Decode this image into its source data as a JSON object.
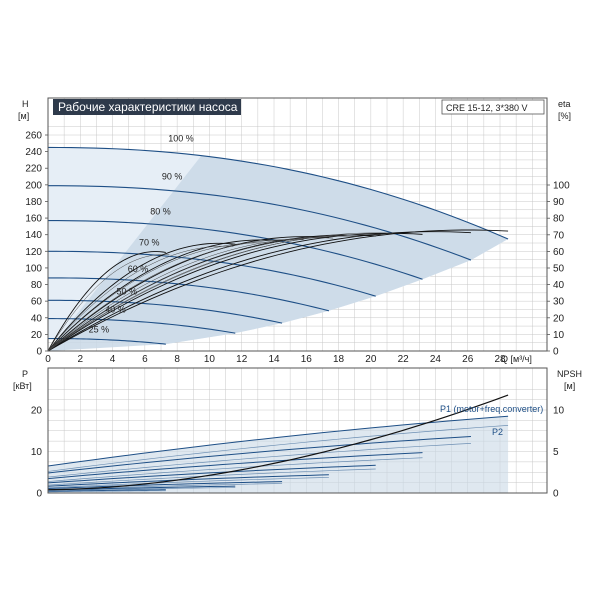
{
  "chart_data": [
    {
      "type": "line",
      "title": "Рабочие характеристики насоса",
      "model": "CRE 15-12, 3*380 V",
      "x_axis": {
        "label": "Q [м³/ч]",
        "range": [
          0,
          30
        ],
        "ticks": [
          "0",
          "2",
          "4",
          "6",
          "8",
          "10",
          "12",
          "14",
          "16",
          "18",
          "20",
          "22",
          "24",
          "26",
          "28"
        ]
      },
      "y_axis_left": {
        "label": "H",
        "unit": "[м]",
        "range": [
          0,
          270
        ],
        "ticks": [
          "0",
          "20",
          "40",
          "60",
          "80",
          "100",
          "120",
          "140",
          "160",
          "180",
          "200",
          "220",
          "240",
          "260"
        ]
      },
      "y_axis_right": {
        "label": "eta",
        "unit": "[%]",
        "range": [
          0,
          100
        ],
        "ticks": [
          "0",
          "10",
          "20",
          "30",
          "40",
          "50",
          "60",
          "70",
          "80",
          "90",
          "100"
        ]
      },
      "grid": true,
      "series": [
        {
          "name": "100 %",
          "speed": 1.0,
          "h0": 245,
          "qmax": 28.5,
          "eta_peak": 73
        },
        {
          "name": "90 %",
          "speed": 0.9,
          "h0": 199,
          "qmax": 26.2,
          "eta_peak": 72
        },
        {
          "name": "80 %",
          "speed": 0.8,
          "h0": 157,
          "qmax": 23.2,
          "eta_peak": 71
        },
        {
          "name": "70 %",
          "speed": 0.7,
          "h0": 120,
          "qmax": 20.3,
          "eta_peak": 70
        },
        {
          "name": "60 %",
          "speed": 0.6,
          "h0": 88,
          "qmax": 17.4,
          "eta_peak": 69
        },
        {
          "name": "50 %",
          "speed": 0.5,
          "h0": 61,
          "qmax": 14.5,
          "eta_peak": 67
        },
        {
          "name": "40 %",
          "speed": 0.4,
          "h0": 39,
          "qmax": 11.6,
          "eta_peak": 65
        },
        {
          "name": "25 %",
          "speed": 0.25,
          "h0": 15,
          "qmax": 7.3,
          "eta_peak": 60
        }
      ],
      "colors": {
        "curve": "#1e4f86",
        "fill": "#c9d8e6",
        "grid": "#c8c8c8",
        "eta": "#111111"
      }
    },
    {
      "type": "line",
      "x_axis": {
        "label": "Q [м³/ч]",
        "range": [
          0,
          30
        ]
      },
      "y_axis_left": {
        "label": "P",
        "unit": "[кВт]",
        "range": [
          0,
          25
        ],
        "ticks": [
          "0",
          "10",
          "20"
        ]
      },
      "y_axis_right": {
        "label": "NPSH",
        "unit": "[м]",
        "range": [
          0,
          12.5
        ],
        "ticks": [
          "0",
          "5",
          "10"
        ]
      },
      "grid": true,
      "series": [
        {
          "name": "P1 (motor+freq.converter)",
          "p_start": 6.2,
          "p_end": 18.0,
          "qmax": 28.5
        },
        {
          "name": "P2",
          "npsh_end": 11.8,
          "qmax": 28.5
        }
      ],
      "colors": {
        "curve": "#1e4f86",
        "fill": "#c9d8e6",
        "npsh": "#111111"
      }
    }
  ]
}
